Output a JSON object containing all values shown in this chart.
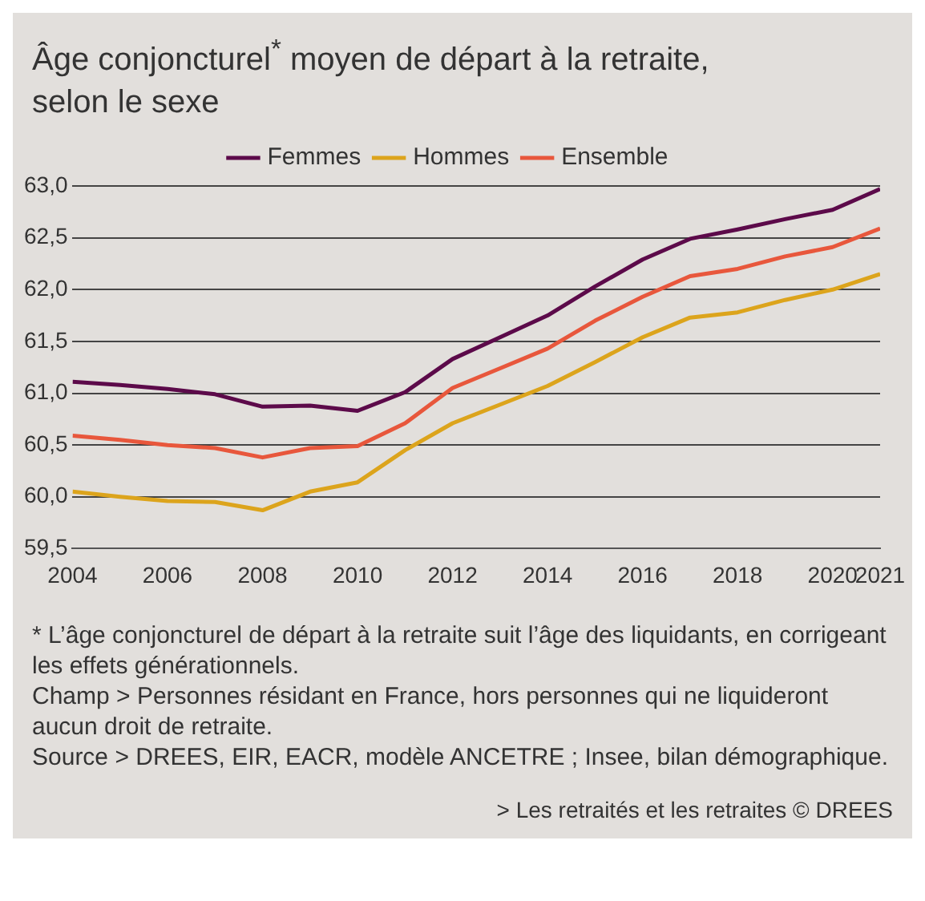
{
  "chart_data": {
    "type": "line",
    "title": "Âge conjoncturel$^{*}$ moyen de départ à la retraite,\nselon le sexe",
    "x": [
      2004,
      2005,
      2006,
      2007,
      2008,
      2009,
      2010,
      2011,
      2012,
      2013,
      2014,
      2015,
      2016,
      2017,
      2018,
      2019,
      2020,
      2021
    ],
    "series": [
      {
        "name": "Femmes",
        "color": "#5c0a4a",
        "values": [
          61.11,
          61.08,
          61.04,
          60.99,
          60.87,
          60.88,
          60.83,
          61.01,
          61.33,
          61.54,
          61.75,
          62.03,
          62.29,
          62.49,
          62.58,
          62.68,
          62.77,
          62.97
        ]
      },
      {
        "name": "Hommes",
        "color": "#dca41c",
        "values": [
          60.05,
          60.0,
          59.96,
          59.95,
          59.87,
          60.05,
          60.14,
          60.45,
          60.71,
          60.89,
          61.07,
          61.3,
          61.54,
          61.73,
          61.78,
          61.9,
          62.0,
          62.15
        ]
      },
      {
        "name": "Ensemble",
        "color": "#e8573c",
        "values": [
          60.59,
          60.55,
          60.5,
          60.47,
          60.38,
          60.47,
          60.49,
          60.71,
          61.05,
          61.24,
          61.43,
          61.7,
          61.93,
          62.13,
          62.2,
          62.32,
          62.41,
          62.59
        ]
      }
    ],
    "xlim": [
      2004,
      2021
    ],
    "xticks": [
      2004,
      2006,
      2008,
      2010,
      2012,
      2014,
      2016,
      2018,
      2020,
      2021
    ],
    "ylim": [
      59.5,
      63
    ],
    "yticks": [
      {
        "value": 59.5,
        "label": "59,5"
      },
      {
        "value": 60,
        "label": "60,0"
      },
      {
        "value": 60.5,
        "label": "60,5"
      },
      {
        "value": 61,
        "label": "61,0"
      },
      {
        "value": 61.5,
        "label": "61,5"
      },
      {
        "value": 62,
        "label": "62,0"
      },
      {
        "value": 62.5,
        "label": "62,5"
      },
      {
        "value": 63,
        "label": "63,0"
      }
    ],
    "grid": "y",
    "legend": "top",
    "marker": "none",
    "line_style": "solid",
    "annotations": [
      "* L’âge conjoncturel de départ à la retraite suit l’âge des liquidants, en corrigeant les effets générationnels.",
      "Champ > Personnes résidant en France, hors personnes qui ne liquideront aucun droit de retraite.",
      "Source > DREES, EIR, EACR, modèle ANCETRE ; Insee, bilan démographique.",
      "> Les retraités et les retraites © DREES"
    ]
  }
}
